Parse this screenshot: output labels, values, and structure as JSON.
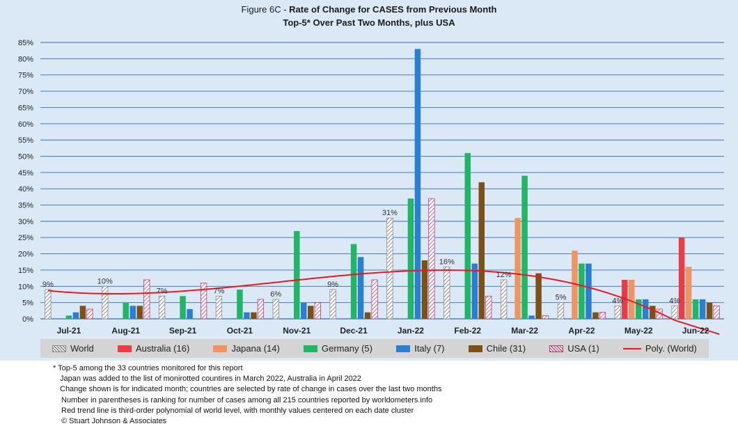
{
  "title": {
    "prefix": "Figure 6C - ",
    "main": "Rate of Change for CASES from Previous Month",
    "subtitle": "Top-5* Over Past Two Months, plus USA"
  },
  "colors": {
    "World": "#8c8c8c",
    "Australia (16)": "#ec3b45",
    "Japana (14)": "#f0955f",
    "Germany (5)": "#21b566",
    "Italy (7)": "#2b7fd2",
    "Chile (31)": "#7a5218",
    "USA (1)": "#c03a6a",
    "trend": "#e8191e",
    "background": "#dbe8f6",
    "grid": "#2f6fb3"
  },
  "chart_data": {
    "type": "bar",
    "categories": [
      "Jul-21",
      "Aug-21",
      "Sep-21",
      "Oct-21",
      "Nov-21",
      "Dec-21",
      "Jan-22",
      "Feb-22",
      "Mar-22",
      "Apr-22",
      "May-22",
      "Jun-22"
    ],
    "ylim": [
      0,
      85
    ],
    "yticks": [
      0,
      5,
      10,
      15,
      20,
      25,
      30,
      35,
      40,
      45,
      50,
      55,
      60,
      65,
      70,
      75,
      80,
      85
    ],
    "ytick_labels": [
      "0%",
      "5%",
      "10%",
      "15%",
      "20%",
      "25%",
      "30%",
      "35%",
      "40%",
      "45%",
      "50%",
      "55%",
      "60%",
      "65%",
      "70%",
      "75%",
      "80%",
      "85%"
    ],
    "grid": true,
    "legend_position": "bottom",
    "series": [
      {
        "name": "World",
        "values": [
          9,
          10,
          7,
          7,
          6,
          9,
          31,
          16,
          12,
          5,
          4,
          4
        ],
        "data_labels": [
          "9%",
          "10%",
          "7%",
          "7%",
          "6%",
          "9%",
          "31%",
          "16%",
          "12%",
          "5%",
          "4%",
          "4%"
        ]
      },
      {
        "name": "Australia (16)",
        "values": [
          null,
          null,
          null,
          null,
          null,
          null,
          null,
          null,
          null,
          null,
          12,
          25
        ]
      },
      {
        "name": "Japana (14)",
        "values": [
          null,
          null,
          null,
          null,
          null,
          null,
          null,
          null,
          31,
          21,
          12,
          16
        ]
      },
      {
        "name": "Germany (5)",
        "values": [
          1,
          5,
          7,
          9,
          27,
          23,
          37,
          51,
          44,
          17,
          6,
          6
        ]
      },
      {
        "name": "Italy (7)",
        "values": [
          2,
          4,
          3,
          2,
          5,
          19,
          83,
          17,
          1,
          17,
          6,
          6
        ]
      },
      {
        "name": "Chile (31)",
        "values": [
          4,
          4,
          null,
          2,
          4,
          2,
          18,
          42,
          14,
          2,
          4,
          5
        ]
      },
      {
        "name": "USA (1)",
        "values": [
          3,
          12,
          11,
          6,
          5,
          12,
          37,
          7,
          1,
          2,
          3,
          4
        ]
      }
    ],
    "trend": {
      "name": "Poly. (World)",
      "type": "polynomial",
      "order": 3
    }
  },
  "notes": [
    "* Top-5 among the 33 countries monitored for this report",
    "Japan was added to the list of monirotted countires in March 2022, Australia in April 2022",
    "Change shown is for indicated month; countries are selected by rate of change in cases over the last two months",
    "Number in parentheses is ranking for number of cases among all 215 countries reported by worldometers.info",
    "Red trend line is third-order polynomial of world level, with monthly values centered on each date cluster",
    "© Stuart Johnson & Associates"
  ]
}
